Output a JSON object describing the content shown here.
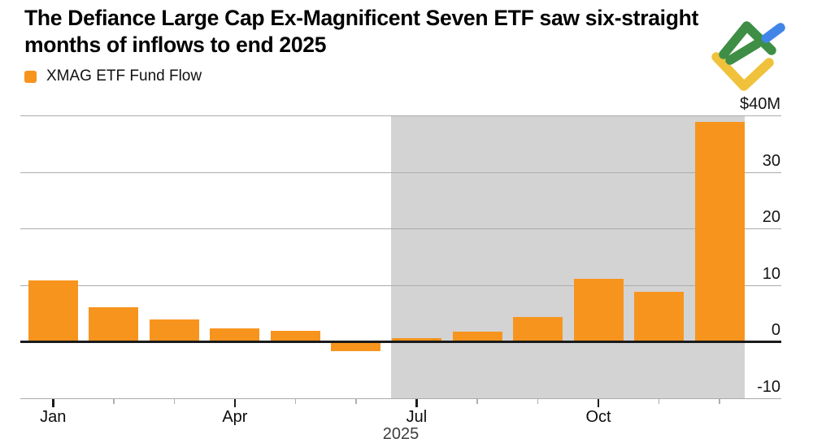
{
  "header": {
    "title_line1": "The Defiance Large Cap Ex-Magnificent Seven ETF saw six-straight",
    "title_line2": "months of inflows to end 2025"
  },
  "legend": {
    "label": "XMAG ETF Fund Flow",
    "swatch_color": "#F7941E"
  },
  "logo": {
    "name": "litefinance-logo",
    "colors": {
      "green": "#3E8E45",
      "blue": "#4285E8",
      "yellow": "#F0C23C"
    }
  },
  "chart_data": {
    "type": "bar",
    "title": "The Defiance Large Cap Ex-Magnificent Seven ETF saw six-straight months of inflows to end 2025",
    "series_name": "XMAG ETF Fund Flow",
    "unit": "$M",
    "categories": [
      "Jan",
      "Feb",
      "Mar",
      "Apr",
      "May",
      "Jun",
      "Jul",
      "Aug",
      "Sep",
      "Oct",
      "Nov",
      "Dec"
    ],
    "values": [
      10.9,
      6.1,
      4.0,
      2.3,
      1.9,
      -1.6,
      0.7,
      1.8,
      4.3,
      11.1,
      8.8,
      38.9
    ],
    "ylim": [
      -10,
      40
    ],
    "y_ticks": [
      {
        "value": 40,
        "label": "$40M"
      },
      {
        "value": 30,
        "label": "30"
      },
      {
        "value": 20,
        "label": "20"
      },
      {
        "value": 10,
        "label": "10"
      },
      {
        "value": 0,
        "label": "0"
      },
      {
        "value": -10,
        "label": "-10"
      }
    ],
    "x_labeled_ticks": [
      "Jan",
      "Apr",
      "Jul",
      "Oct"
    ],
    "x_axis_year_label": "2025",
    "bar_color": "#F7941E",
    "highlight_region": {
      "from_category": "Jul",
      "to_category": "Dec",
      "color": "#D3D3D3"
    },
    "grid": true,
    "gridline_color": "#ACACAC",
    "zero_line_color": "#1B1B1B",
    "legend_position": "top-left"
  }
}
